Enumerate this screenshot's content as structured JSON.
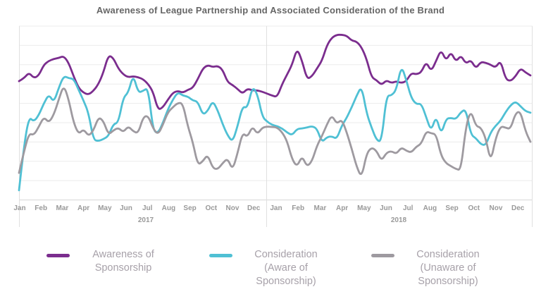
{
  "title": "Awareness of League Partnership and Associated Consideration of the Brand",
  "colors": {
    "awareness": "#7b2d8e",
    "consideration_aware": "#4fc0d4",
    "consideration_unaware": "#9e9aa0",
    "gridline": "#ebebeb",
    "axis_line": "#d6d6d6",
    "axis_separator": "#e0e0e0",
    "axis_label": "#999999",
    "legend_text": "#a7a1a9",
    "title_text": "#666666"
  },
  "legend": [
    {
      "label": "Awareness of Sponsorship"
    },
    {
      "label": "Consideration (Aware of Sponsorship)"
    },
    {
      "label": "Consideration (Unaware of Sponsorship)"
    }
  ],
  "chart_data": {
    "type": "line",
    "title": "Awareness of League Partnership and Associated Consideration of the Brand",
    "x_unit": "weekly points, Jan 2017 - Dec 2018",
    "months": [
      "Jan",
      "Feb",
      "Mar",
      "Apr",
      "May",
      "Jun",
      "Jul",
      "Aug",
      "Sep",
      "Oct",
      "Nov",
      "Dec"
    ],
    "years": [
      "2017",
      "2018"
    ],
    "y_axis_labels_visible": false,
    "ylim": [
      0,
      90
    ],
    "gridlines": 10,
    "legend_position": "bottom",
    "series": [
      {
        "name": "Awareness of Sponsorship",
        "color": "#7b2d8e",
        "values": [
          61.5,
          63,
          66,
          63,
          64.5,
          70,
          72,
          73,
          73.5,
          74.5,
          71,
          64,
          58,
          55.5,
          54.5,
          56.5,
          60,
          66,
          75,
          73.5,
          68,
          65,
          63.5,
          64,
          63.5,
          62.5,
          60,
          56,
          46.5,
          48,
          52,
          55.5,
          56.5,
          55.5,
          57,
          58,
          62.5,
          68,
          69.8,
          68.8,
          69.4,
          67.5,
          61,
          59.5,
          57.5,
          55,
          57.6,
          56.7,
          56.7,
          56,
          55,
          54,
          53.3,
          60,
          65,
          70,
          78.6,
          72,
          62.5,
          64,
          68,
          72,
          80,
          84,
          85.5,
          85.5,
          85,
          82.5,
          82,
          79,
          73,
          63.5,
          62,
          59.5,
          62,
          60.5,
          61.5,
          60.5,
          61.5,
          65.7,
          65,
          66,
          71.6,
          66.5,
          72,
          77.8,
          72,
          76.7,
          71.5,
          74.9,
          70.5,
          72.5,
          68,
          71.5,
          71,
          70,
          68.5,
          72.3,
          62.5,
          61.5,
          64,
          68.2,
          66,
          64.5
        ]
      },
      {
        "name": "Consideration (Aware of Sponsorship)",
        "color": "#4fc0d4",
        "values": [
          5,
          28,
          43,
          40.5,
          44,
          50,
          54.7,
          50.5,
          58,
          64.2,
          63,
          62.8,
          57,
          51.4,
          45,
          31,
          30.5,
          31.5,
          33,
          39.3,
          40,
          53,
          55.5,
          65,
          55.5,
          56.5,
          58,
          36,
          34.5,
          40,
          47,
          52,
          55.8,
          54,
          53.5,
          51.5,
          51,
          44,
          46,
          51.4,
          46.5,
          39.3,
          33.5,
          30,
          38,
          48.5,
          47.5,
          58.7,
          55,
          43,
          40.5,
          38.8,
          38.2,
          37,
          34.9,
          33.5,
          36.8,
          37,
          37.5,
          38.2,
          37,
          29.8,
          32.5,
          33,
          31.5,
          38.5,
          42.5,
          48,
          54,
          59,
          45,
          37.5,
          31,
          30,
          54,
          54,
          57,
          69.7,
          62,
          52.8,
          49.5,
          50,
          42.9,
          35.5,
          43.7,
          33.8,
          42,
          42.5,
          41.8,
          45.5,
          47,
          33.8,
          32,
          28.8,
          28.3,
          35,
          38.5,
          41,
          45.5,
          49,
          51,
          48.5,
          46,
          45.2
        ]
      },
      {
        "name": "Consideration (Unaware of Sponsorship)",
        "color": "#9e9aa0",
        "values": [
          14,
          25,
          34.5,
          33.5,
          38,
          43,
          40,
          44,
          52,
          59.5,
          52,
          40,
          34,
          36.7,
          33,
          36,
          42.9,
          41,
          33.8,
          36,
          37.4,
          35,
          38.2,
          35.5,
          34.5,
          42.9,
          43.7,
          37,
          33.8,
          39,
          45.5,
          48,
          50.3,
          50,
          38,
          30,
          18,
          20,
          23.5,
          16.5,
          15.8,
          19,
          21.6,
          15.4,
          24,
          34.9,
          32.5,
          38.2,
          34,
          37.5,
          38,
          37.8,
          37.5,
          35,
          30.5,
          21,
          17.2,
          22.8,
          17.2,
          20,
          28,
          33,
          39,
          44,
          39.3,
          41.8,
          35,
          26.5,
          17.2,
          11.5,
          24,
          27.2,
          25.5,
          20.2,
          24.5,
          25.3,
          23.8,
          27.2,
          25.5,
          24.5,
          27.6,
          29,
          35.6,
          34.5,
          34,
          23,
          19,
          17.5,
          16,
          15.4,
          38,
          46.6,
          38.2,
          37.6,
          32,
          19.5,
          32,
          38.2,
          37.4,
          36.7,
          45,
          45.9,
          35.5,
          30.1
        ]
      }
    ]
  }
}
